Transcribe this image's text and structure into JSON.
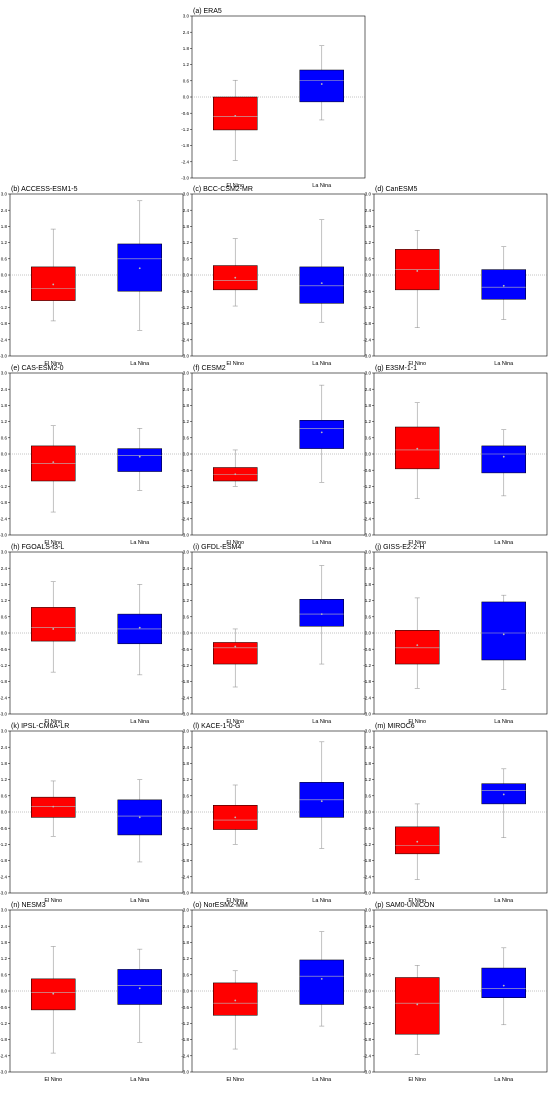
{
  "colors": {
    "el_nino": "#ff0000",
    "la_nina": "#0000ff",
    "whisker": "#999999",
    "zero_line": "#888888",
    "median": "#bbbbbb"
  },
  "chart_data": [
    {
      "type": "box",
      "title": "(a) ERA5",
      "categories": [
        "El Nino",
        "La Nina"
      ],
      "ylim": [
        -3.0,
        3.0
      ],
      "yticks": [
        "-3.0",
        "-2.4",
        "-1.8",
        "-1.2",
        "-0.6",
        "0.0",
        "0.6",
        "1.2",
        "1.8",
        "2.4",
        "3.0"
      ],
      "reference_line": 0.0,
      "boxes": [
        {
          "category": "El Nino",
          "whisker_low": -2.35,
          "q1": -1.22,
          "median": -0.72,
          "q3": 0.0,
          "whisker_high": 0.62,
          "mean": -0.7
        },
        {
          "category": "La Nina",
          "whisker_low": -0.85,
          "q1": -0.18,
          "median": 0.62,
          "q3": 1.0,
          "whisker_high": 1.9,
          "mean": 0.48
        }
      ]
    },
    {
      "type": "box",
      "title": "(b) ACCESS-ESM1-5",
      "categories": [
        "El Nino",
        "La Nina"
      ],
      "ylim": [
        -3.0,
        3.0
      ],
      "yticks": [
        "-3.0",
        "-2.4",
        "-1.8",
        "-1.2",
        "-0.6",
        "0.0",
        "0.6",
        "1.2",
        "1.8",
        "2.4",
        "3.0"
      ],
      "reference_line": 0.0,
      "boxes": [
        {
          "category": "El Nino",
          "whisker_low": -1.7,
          "q1": -0.95,
          "median": -0.5,
          "q3": 0.3,
          "whisker_high": 1.7,
          "mean": -0.35
        },
        {
          "category": "La Nina",
          "whisker_low": -2.05,
          "q1": -0.6,
          "median": 0.6,
          "q3": 1.15,
          "whisker_high": 2.75,
          "mean": 0.25
        }
      ]
    },
    {
      "type": "box",
      "title": "(c) BCC-CSM2-MR",
      "categories": [
        "El Nino",
        "La Nina"
      ],
      "ylim": [
        -3.0,
        3.0
      ],
      "yticks": [
        "-3.0",
        "-2.4",
        "-1.8",
        "-1.2",
        "-0.6",
        "0.0",
        "0.6",
        "1.2",
        "1.8",
        "2.4",
        "3.0"
      ],
      "reference_line": 0.0,
      "boxes": [
        {
          "category": "El Nino",
          "whisker_low": -1.15,
          "q1": -0.55,
          "median": -0.2,
          "q3": 0.35,
          "whisker_high": 1.35,
          "mean": -0.1
        },
        {
          "category": "La Nina",
          "whisker_low": -1.75,
          "q1": -1.05,
          "median": -0.4,
          "q3": 0.3,
          "whisker_high": 2.05,
          "mean": -0.3
        }
      ]
    },
    {
      "type": "box",
      "title": "(d) CanESM5",
      "categories": [
        "El Nino",
        "La Nina"
      ],
      "ylim": [
        -3.0,
        3.0
      ],
      "yticks": [
        "-3.0",
        "-2.4",
        "-1.8",
        "-1.2",
        "-0.6",
        "0.0",
        "0.6",
        "1.2",
        "1.8",
        "2.4",
        "3.0"
      ],
      "reference_line": 0.0,
      "boxes": [
        {
          "category": "El Nino",
          "whisker_low": -1.95,
          "q1": -0.55,
          "median": 0.2,
          "q3": 0.95,
          "whisker_high": 1.65,
          "mean": 0.15
        },
        {
          "category": "La Nina",
          "whisker_low": -1.65,
          "q1": -0.9,
          "median": -0.45,
          "q3": 0.2,
          "whisker_high": 1.05,
          "mean": -0.4
        }
      ]
    },
    {
      "type": "box",
      "title": "(e) CAS-ESM2-0",
      "categories": [
        "El Nino",
        "La Nina"
      ],
      "ylim": [
        -3.0,
        3.0
      ],
      "yticks": [
        "-3.0",
        "-2.4",
        "-1.8",
        "-1.2",
        "-0.6",
        "0.0",
        "0.6",
        "1.2",
        "1.8",
        "2.4",
        "3.0"
      ],
      "reference_line": 0.0,
      "boxes": [
        {
          "category": "El Nino",
          "whisker_low": -2.15,
          "q1": -1.0,
          "median": -0.35,
          "q3": 0.3,
          "whisker_high": 1.05,
          "mean": -0.3
        },
        {
          "category": "La Nina",
          "whisker_low": -1.35,
          "q1": -0.65,
          "median": -0.05,
          "q3": 0.2,
          "whisker_high": 0.95,
          "mean": -0.1
        }
      ]
    },
    {
      "type": "box",
      "title": "(f) CESM2",
      "categories": [
        "El Nino",
        "La Nina"
      ],
      "ylim": [
        -3.0,
        3.0
      ],
      "yticks": [
        "-3.0",
        "-2.4",
        "-1.8",
        "-1.2",
        "-0.6",
        "0.0",
        "0.6",
        "1.2",
        "1.8",
        "2.4",
        "3.0"
      ],
      "reference_line": 0.0,
      "boxes": [
        {
          "category": "El Nino",
          "whisker_low": -1.2,
          "q1": -1.0,
          "median": -0.75,
          "q3": -0.5,
          "whisker_high": 0.15,
          "mean": -0.75
        },
        {
          "category": "La Nina",
          "whisker_low": -1.05,
          "q1": 0.2,
          "median": 0.95,
          "q3": 1.25,
          "whisker_high": 2.55,
          "mean": 0.8
        }
      ]
    },
    {
      "type": "box",
      "title": "(g) E3SM-1-1",
      "categories": [
        "El Nino",
        "La Nina"
      ],
      "ylim": [
        -3.0,
        3.0
      ],
      "yticks": [
        "-3.0",
        "-2.4",
        "-1.8",
        "-1.2",
        "-0.6",
        "0.0",
        "0.6",
        "1.2",
        "1.8",
        "2.4",
        "3.0"
      ],
      "reference_line": 0.0,
      "boxes": [
        {
          "category": "El Nino",
          "whisker_low": -1.65,
          "q1": -0.55,
          "median": 0.15,
          "q3": 1.0,
          "whisker_high": 1.9,
          "mean": 0.2
        },
        {
          "category": "La Nina",
          "whisker_low": -1.55,
          "q1": -0.7,
          "median": 0.0,
          "q3": 0.3,
          "whisker_high": 0.9,
          "mean": -0.1
        }
      ]
    },
    {
      "type": "box",
      "title": "(h) FGOALS-f3-L",
      "categories": [
        "El Nino",
        "La Nina"
      ],
      "ylim": [
        -3.0,
        3.0
      ],
      "yticks": [
        "-3.0",
        "-2.4",
        "-1.8",
        "-1.2",
        "-0.6",
        "0.0",
        "0.6",
        "1.2",
        "1.8",
        "2.4",
        "3.0"
      ],
      "reference_line": 0.0,
      "boxes": [
        {
          "category": "El Nino",
          "whisker_low": -1.45,
          "q1": -0.3,
          "median": 0.2,
          "q3": 0.95,
          "whisker_high": 1.9,
          "mean": 0.15
        },
        {
          "category": "La Nina",
          "whisker_low": -1.55,
          "q1": -0.4,
          "median": 0.15,
          "q3": 0.7,
          "whisker_high": 1.8,
          "mean": 0.2
        }
      ]
    },
    {
      "type": "box",
      "title": "(i) GFDL-ESM4",
      "categories": [
        "El Nino",
        "La Nina"
      ],
      "ylim": [
        -3.0,
        3.0
      ],
      "yticks": [
        "-3.0",
        "-2.4",
        "-1.8",
        "-1.2",
        "-0.6",
        "0.0",
        "0.6",
        "1.2",
        "1.8",
        "2.4",
        "3.0"
      ],
      "reference_line": 0.0,
      "boxes": [
        {
          "category": "El Nino",
          "whisker_low": -2.0,
          "q1": -1.15,
          "median": -0.55,
          "q3": -0.35,
          "whisker_high": 0.15,
          "mean": -0.5
        },
        {
          "category": "La Nina",
          "whisker_low": -1.15,
          "q1": 0.25,
          "median": 0.7,
          "q3": 1.25,
          "whisker_high": 2.5,
          "mean": 0.7
        }
      ]
    },
    {
      "type": "box",
      "title": "(j) GISS-E2-2-H",
      "categories": [
        "El Nino",
        "La Nina"
      ],
      "ylim": [
        -3.0,
        3.0
      ],
      "yticks": [
        "-3.0",
        "-2.4",
        "-1.8",
        "-1.2",
        "-0.6",
        "0.0",
        "0.6",
        "1.2",
        "1.8",
        "2.4",
        "3.0"
      ],
      "reference_line": 0.0,
      "boxes": [
        {
          "category": "El Nino",
          "whisker_low": -2.05,
          "q1": -1.15,
          "median": -0.55,
          "q3": 0.1,
          "whisker_high": 1.3,
          "mean": -0.45
        },
        {
          "category": "La Nina",
          "whisker_low": -2.1,
          "q1": -1.0,
          "median": 0.0,
          "q3": 1.15,
          "whisker_high": 1.4,
          "mean": -0.05
        }
      ]
    },
    {
      "type": "box",
      "title": "(k) IPSL-CM6A-LR",
      "categories": [
        "El Nino",
        "La Nina"
      ],
      "ylim": [
        -3.0,
        3.0
      ],
      "yticks": [
        "-3.0",
        "-2.4",
        "-1.8",
        "-1.2",
        "-0.6",
        "0.0",
        "0.6",
        "1.2",
        "1.8",
        "2.4",
        "3.0"
      ],
      "reference_line": 0.0,
      "boxes": [
        {
          "category": "El Nino",
          "whisker_low": -0.9,
          "q1": -0.2,
          "median": 0.2,
          "q3": 0.55,
          "whisker_high": 1.15,
          "mean": 0.2
        },
        {
          "category": "La Nina",
          "whisker_low": -1.85,
          "q1": -0.85,
          "median": -0.15,
          "q3": 0.45,
          "whisker_high": 1.2,
          "mean": -0.2
        }
      ]
    },
    {
      "type": "box",
      "title": "(l) KACE-1-0-G",
      "categories": [
        "El Nino",
        "La Nina"
      ],
      "ylim": [
        -3.0,
        3.0
      ],
      "yticks": [
        "-3.0",
        "-2.4",
        "-1.8",
        "-1.2",
        "-0.6",
        "0.0",
        "0.6",
        "1.2",
        "1.8",
        "2.4",
        "3.0"
      ],
      "reference_line": 0.0,
      "boxes": [
        {
          "category": "El Nino",
          "whisker_low": -1.2,
          "q1": -0.65,
          "median": -0.3,
          "q3": 0.25,
          "whisker_high": 1.0,
          "mean": -0.2
        },
        {
          "category": "La Nina",
          "whisker_low": -1.35,
          "q1": -0.2,
          "median": 0.45,
          "q3": 1.1,
          "whisker_high": 2.6,
          "mean": 0.4
        }
      ]
    },
    {
      "type": "box",
      "title": "(m) MIROC6",
      "categories": [
        "El Nino",
        "La Nina"
      ],
      "ylim": [
        -3.0,
        3.0
      ],
      "yticks": [
        "-3.0",
        "-2.4",
        "-1.8",
        "-1.2",
        "-0.6",
        "0.0",
        "0.6",
        "1.2",
        "1.8",
        "2.4",
        "3.0"
      ],
      "reference_line": 0.0,
      "boxes": [
        {
          "category": "El Nino",
          "whisker_low": -2.5,
          "q1": -1.55,
          "median": -1.25,
          "q3": -0.55,
          "whisker_high": 0.3,
          "mean": -1.1
        },
        {
          "category": "La Nina",
          "whisker_low": -0.95,
          "q1": 0.3,
          "median": 0.8,
          "q3": 1.05,
          "whisker_high": 1.6,
          "mean": 0.65
        }
      ]
    },
    {
      "type": "box",
      "title": "(n) NESM3",
      "categories": [
        "El Nino",
        "La Nina"
      ],
      "ylim": [
        -3.0,
        3.0
      ],
      "yticks": [
        "-3.0",
        "-2.4",
        "-1.8",
        "-1.2",
        "-0.6",
        "0.0",
        "0.6",
        "1.2",
        "1.8",
        "2.4",
        "3.0"
      ],
      "reference_line": 0.0,
      "boxes": [
        {
          "category": "El Nino",
          "whisker_low": -2.3,
          "q1": -0.7,
          "median": -0.05,
          "q3": 0.45,
          "whisker_high": 1.65,
          "mean": -0.1
        },
        {
          "category": "La Nina",
          "whisker_low": -1.9,
          "q1": -0.5,
          "median": 0.2,
          "q3": 0.8,
          "whisker_high": 1.55,
          "mean": 0.1
        }
      ]
    },
    {
      "type": "box",
      "title": "(o) NorESM2-MM",
      "categories": [
        "El Nino",
        "La Nina"
      ],
      "ylim": [
        -3.0,
        3.0
      ],
      "yticks": [
        "-3.0",
        "-2.4",
        "-1.8",
        "-1.2",
        "-0.6",
        "0.0",
        "0.6",
        "1.2",
        "1.8",
        "2.4",
        "3.0"
      ],
      "reference_line": 0.0,
      "boxes": [
        {
          "category": "El Nino",
          "whisker_low": -2.15,
          "q1": -0.9,
          "median": -0.45,
          "q3": 0.3,
          "whisker_high": 0.75,
          "mean": -0.35
        },
        {
          "category": "La Nina",
          "whisker_low": -1.3,
          "q1": -0.5,
          "median": 0.55,
          "q3": 1.15,
          "whisker_high": 2.2,
          "mean": 0.45
        }
      ]
    },
    {
      "type": "box",
      "title": "(p) SAM0-UNICON",
      "categories": [
        "El Nino",
        "La Nina"
      ],
      "ylim": [
        -3.0,
        3.0
      ],
      "yticks": [
        "-3.0",
        "-2.4",
        "-1.8",
        "-1.2",
        "-0.6",
        "0.0",
        "0.6",
        "1.2",
        "1.8",
        "2.4",
        "3.0"
      ],
      "reference_line": 0.0,
      "boxes": [
        {
          "category": "El Nino",
          "whisker_low": -2.35,
          "q1": -1.6,
          "median": -0.45,
          "q3": 0.5,
          "whisker_high": 0.95,
          "mean": -0.5
        },
        {
          "category": "La Nina",
          "whisker_low": -1.25,
          "q1": -0.25,
          "median": 0.1,
          "q3": 0.85,
          "whisker_high": 1.6,
          "mean": 0.2
        }
      ]
    }
  ]
}
